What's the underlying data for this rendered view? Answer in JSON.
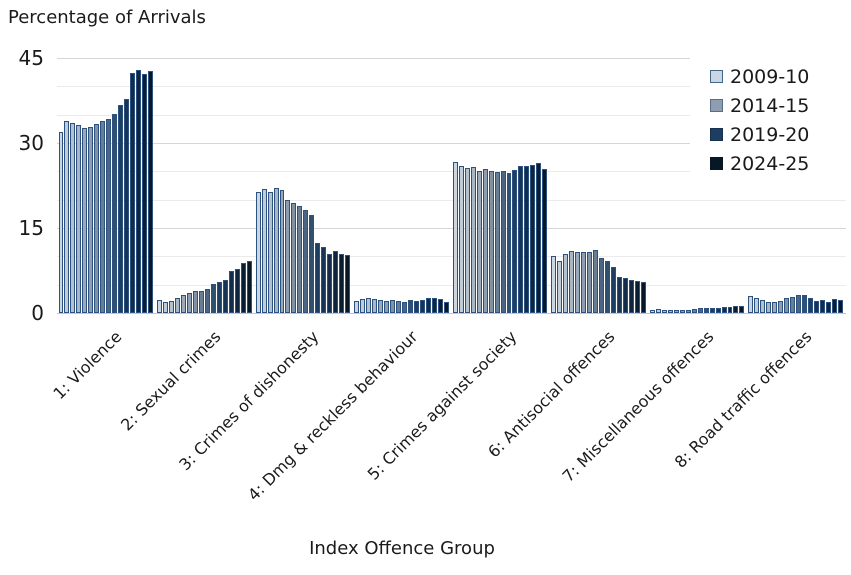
{
  "title": "Percentage of Arrivals",
  "x_axis_title": "Index Offence Group",
  "colors": {
    "grid_minor": "#ebebeb",
    "grid_major": "#d6d6d6",
    "baseline": "#c6c6c6",
    "bar_border": "#2e5280",
    "text": "#1a1a1a"
  },
  "legend": {
    "position": "top-right",
    "items": [
      {
        "label": "2009-10",
        "fill": "#ccd6e1",
        "border": "#41678f",
        "series_index": 0
      },
      {
        "label": "2014-15",
        "fill": "#8e9eb0",
        "border": "#5a6e83",
        "series_index": 5
      },
      {
        "label": "2019-20",
        "fill": "#1d3d61",
        "border": "#16304d",
        "series_index": 10
      },
      {
        "label": "2024-25",
        "fill": "#071726",
        "border": "#071726",
        "series_index": 15
      }
    ]
  },
  "chart_data": {
    "type": "bar",
    "title": "Percentage of Arrivals",
    "xlabel": "Index Offence Group",
    "ylabel": "",
    "ylim": [
      0,
      45
    ],
    "yticks": [
      0,
      15,
      30,
      45
    ],
    "gridline_step": 5,
    "grid": "horizontal",
    "legend_position": "top-right",
    "bars_per_group": 16,
    "series_note": "16 annual bars per group shading light-to-dark from 2009-10 to 2024-25; legend labels every fifth year",
    "categories": [
      "1: Violence",
      "2: Sexual crimes",
      "3: Crimes of dishonesty",
      "4: Dmg & reckless behaviour",
      "5: Crimes against society",
      "6: Antisocial offences",
      "7: Miscellaneous offences",
      "8: Road traffic offences"
    ],
    "groups": [
      {
        "label": "1: Violence",
        "values": [
          32.0,
          33.8,
          33.5,
          33.1,
          32.6,
          32.8,
          33.4,
          33.8,
          34.3,
          35.2,
          36.7,
          37.7,
          42.4,
          42.9,
          42.2,
          42.7
        ]
      },
      {
        "label": "2: Sexual crimes",
        "values": [
          2.3,
          2.0,
          2.2,
          2.6,
          3.2,
          3.6,
          3.8,
          3.9,
          4.2,
          5.1,
          5.4,
          5.9,
          7.5,
          7.7,
          8.8,
          9.1
        ]
      },
      {
        "label": "3: Crimes of dishonesty",
        "values": [
          21.4,
          21.8,
          21.4,
          22.0,
          21.7,
          19.9,
          19.5,
          18.8,
          18.1,
          17.3,
          12.4,
          11.7,
          10.4,
          11.0,
          10.5,
          10.2
        ]
      },
      {
        "label": "4: Dmg & reckless behaviour",
        "values": [
          2.2,
          2.4,
          2.6,
          2.4,
          2.3,
          2.2,
          2.3,
          2.2,
          2.0,
          2.3,
          2.2,
          2.3,
          2.6,
          2.6,
          2.4,
          2.0
        ]
      },
      {
        "label": "5: Crimes against society",
        "values": [
          26.6,
          26.0,
          25.6,
          25.7,
          25.1,
          25.4,
          25.0,
          24.8,
          25.0,
          24.7,
          25.3,
          26.0,
          25.9,
          26.2,
          26.5,
          25.5
        ]
      },
      {
        "label": "6: Antisocial offences",
        "values": [
          10.0,
          9.2,
          10.5,
          11.0,
          10.8,
          10.8,
          10.8,
          11.1,
          9.7,
          9.1,
          8.2,
          6.4,
          6.1,
          5.9,
          5.7,
          5.5
        ]
      },
      {
        "label": "7: Miscellaneous offences",
        "values": [
          0.6,
          0.7,
          0.5,
          0.5,
          0.5,
          0.5,
          0.6,
          0.7,
          0.8,
          0.8,
          0.9,
          0.9,
          1.0,
          1.1,
          1.2,
          1.2
        ]
      },
      {
        "label": "8: Road traffic offences",
        "values": [
          3.0,
          2.7,
          2.3,
          2.0,
          2.0,
          2.2,
          2.6,
          2.9,
          3.2,
          3.2,
          2.6,
          2.2,
          2.3,
          2.0,
          2.4,
          2.3
        ]
      }
    ],
    "palette": [
      "#ccd6e1",
      "#c0ccd8",
      "#b4c1cf",
      "#a8b6c5",
      "#9baabb",
      "#8e9eb0",
      "#8092a4",
      "#677e95",
      "#4c6582",
      "#31506e",
      "#1d3d61",
      "#173455",
      "#122c49",
      "#0e253d",
      "#0a1d31",
      "#071726"
    ]
  }
}
